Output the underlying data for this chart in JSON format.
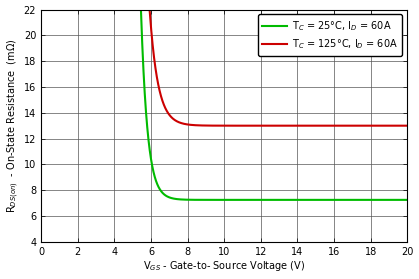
{
  "xlabel": "V$_{GS}$ - Gate-to- Source Voltage (V)",
  "ylabel": "R$_{DS(on)}$  - On-State Resistance  (mΩ)",
  "xlim": [
    0,
    20
  ],
  "ylim": [
    4,
    22
  ],
  "xticks": [
    0,
    2,
    4,
    6,
    8,
    10,
    12,
    14,
    16,
    18,
    20
  ],
  "yticks": [
    4,
    6,
    8,
    10,
    12,
    14,
    16,
    18,
    20,
    22
  ],
  "green_color": "#00BB00",
  "red_color": "#CC0000",
  "legend_labels": [
    "T$_C$ = 25°C, I$_D$ = 60A",
    "T$_C$ = 125°C, I$_D$ = 60A"
  ],
  "background_color": "#FFFFFF",
  "grid_color": "#555555",
  "green_x0": 4.85,
  "green_asymptote": 7.25,
  "green_amplitude": 80.0,
  "green_decay": 2.8,
  "red_x0": 4.75,
  "red_asymptote": 13.0,
  "red_amplitude": 120.0,
  "red_decay": 2.2
}
